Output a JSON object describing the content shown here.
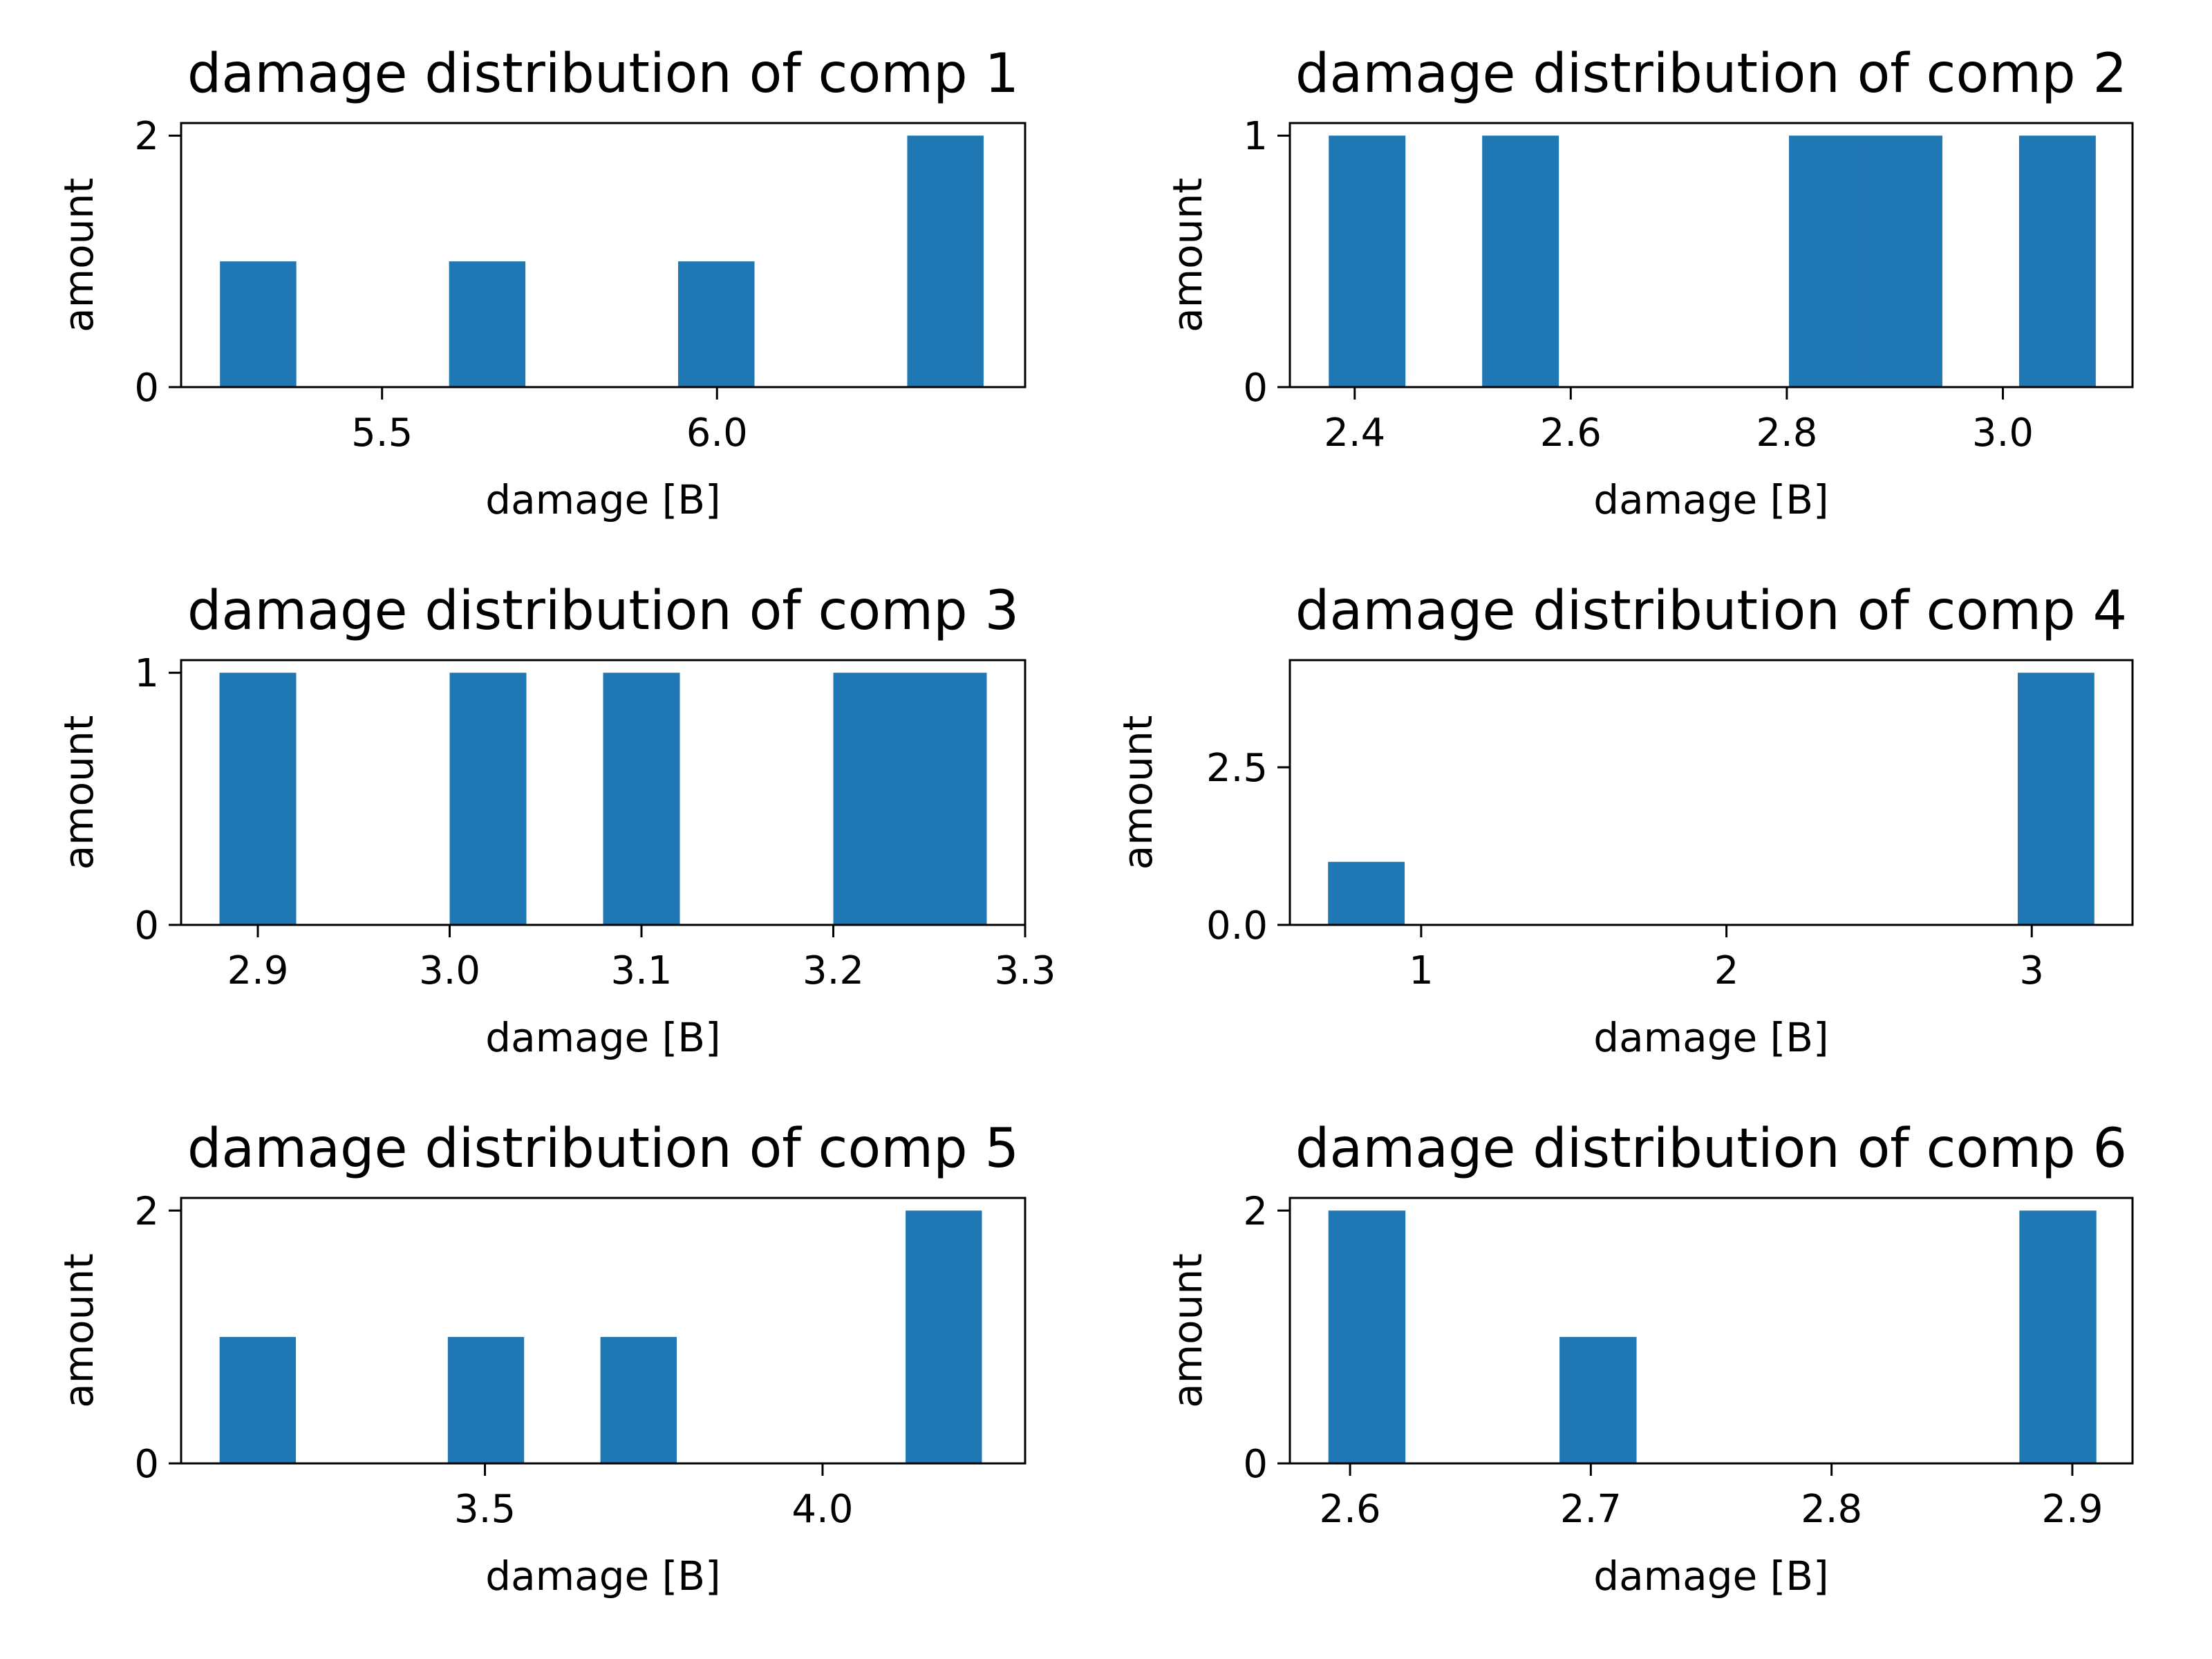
{
  "chart_data": [
    {
      "type": "bar",
      "title": "damage distribution of comp 1",
      "xlabel": "damage [B]",
      "ylabel": "amount",
      "xlim": [
        5.2,
        6.46
      ],
      "ylim": [
        0,
        2.1
      ],
      "xticks": [
        5.5,
        6.0
      ],
      "xtick_labels": [
        "5.5",
        "6.0"
      ],
      "yticks": [
        0,
        2
      ],
      "ytick_labels": [
        "0",
        "2"
      ],
      "bars": [
        {
          "x0": 5.258,
          "x1": 5.372,
          "value": 1
        },
        {
          "x0": 5.6,
          "x1": 5.714,
          "value": 1
        },
        {
          "x0": 5.942,
          "x1": 6.056,
          "value": 1
        },
        {
          "x0": 6.284,
          "x1": 6.398,
          "value": 2
        }
      ],
      "grid": false,
      "color": "#1f77b4"
    },
    {
      "type": "bar",
      "title": "damage distribution of comp 2",
      "xlabel": "damage [B]",
      "ylabel": "amount",
      "xlim": [
        2.34,
        3.12
      ],
      "ylim": [
        0,
        1.05
      ],
      "xticks": [
        2.4,
        2.6,
        2.8,
        3.0
      ],
      "xtick_labels": [
        "2.4",
        "2.6",
        "2.8",
        "3.0"
      ],
      "yticks": [
        0,
        1
      ],
      "ytick_labels": [
        "0",
        "1"
      ],
      "bars": [
        {
          "x0": 2.376,
          "x1": 2.447,
          "value": 1
        },
        {
          "x0": 2.518,
          "x1": 2.589,
          "value": 1
        },
        {
          "x0": 2.802,
          "x1": 2.873,
          "value": 1
        },
        {
          "x0": 2.873,
          "x1": 2.944,
          "value": 1
        },
        {
          "x0": 3.015,
          "x1": 3.086,
          "value": 1
        }
      ],
      "grid": false,
      "color": "#1f77b4"
    },
    {
      "type": "bar",
      "title": "damage distribution of comp 3",
      "xlabel": "damage [B]",
      "ylabel": "amount",
      "xlim": [
        2.86,
        3.3
      ],
      "ylim": [
        0,
        1.05
      ],
      "xticks": [
        2.9,
        3.0,
        3.1,
        3.2,
        3.3
      ],
      "xtick_labels": [
        "2.9",
        "3.0",
        "3.1",
        "3.2",
        "3.3"
      ],
      "yticks": [
        0,
        1
      ],
      "ytick_labels": [
        "0",
        "1"
      ],
      "bars": [
        {
          "x0": 2.88,
          "x1": 2.92,
          "value": 1
        },
        {
          "x0": 3.0,
          "x1": 3.04,
          "value": 1
        },
        {
          "x0": 3.08,
          "x1": 3.12,
          "value": 1
        },
        {
          "x0": 3.2,
          "x1": 3.24,
          "value": 1
        },
        {
          "x0": 3.24,
          "x1": 3.28,
          "value": 1
        }
      ],
      "grid": false,
      "color": "#1f77b4"
    },
    {
      "type": "bar",
      "title": "damage distribution of comp 4",
      "xlabel": "damage [B]",
      "ylabel": "amount",
      "xlim": [
        0.57,
        3.33
      ],
      "ylim": [
        0,
        4.2
      ],
      "xticks": [
        1,
        2,
        3
      ],
      "xtick_labels": [
        "1",
        "2",
        "3"
      ],
      "yticks": [
        0,
        2.5
      ],
      "ytick_labels": [
        "0.0",
        "2.5"
      ],
      "bars": [
        {
          "x0": 0.695,
          "x1": 0.946,
          "value": 1
        },
        {
          "x0": 2.954,
          "x1": 3.205,
          "value": 4
        }
      ],
      "grid": false,
      "color": "#1f77b4"
    },
    {
      "type": "bar",
      "title": "damage distribution of comp 5",
      "xlabel": "damage [B]",
      "ylabel": "amount",
      "xlim": [
        3.05,
        4.3
      ],
      "ylim": [
        0,
        2.1
      ],
      "xticks": [
        3.5,
        4.0
      ],
      "xtick_labels": [
        "3.5",
        "4.0"
      ],
      "yticks": [
        0,
        2
      ],
      "ytick_labels": [
        "0",
        "2"
      ],
      "bars": [
        {
          "x0": 3.107,
          "x1": 3.22,
          "value": 1
        },
        {
          "x0": 3.445,
          "x1": 3.558,
          "value": 1
        },
        {
          "x0": 3.671,
          "x1": 3.784,
          "value": 1
        },
        {
          "x0": 4.123,
          "x1": 4.236,
          "value": 2
        }
      ],
      "grid": false,
      "color": "#1f77b4"
    },
    {
      "type": "bar",
      "title": "damage distribution of comp 6",
      "xlabel": "damage [B]",
      "ylabel": "amount",
      "xlim": [
        2.575,
        2.925
      ],
      "ylim": [
        0,
        2.1
      ],
      "xticks": [
        2.6,
        2.7,
        2.8,
        2.9
      ],
      "xtick_labels": [
        "2.6",
        "2.7",
        "2.8",
        "2.9"
      ],
      "yticks": [
        0,
        2
      ],
      "ytick_labels": [
        "0",
        "2"
      ],
      "bars": [
        {
          "x0": 2.591,
          "x1": 2.623,
          "value": 2
        },
        {
          "x0": 2.687,
          "x1": 2.719,
          "value": 1
        },
        {
          "x0": 2.878,
          "x1": 2.91,
          "value": 2
        }
      ],
      "grid": false,
      "color": "#1f77b4"
    }
  ]
}
